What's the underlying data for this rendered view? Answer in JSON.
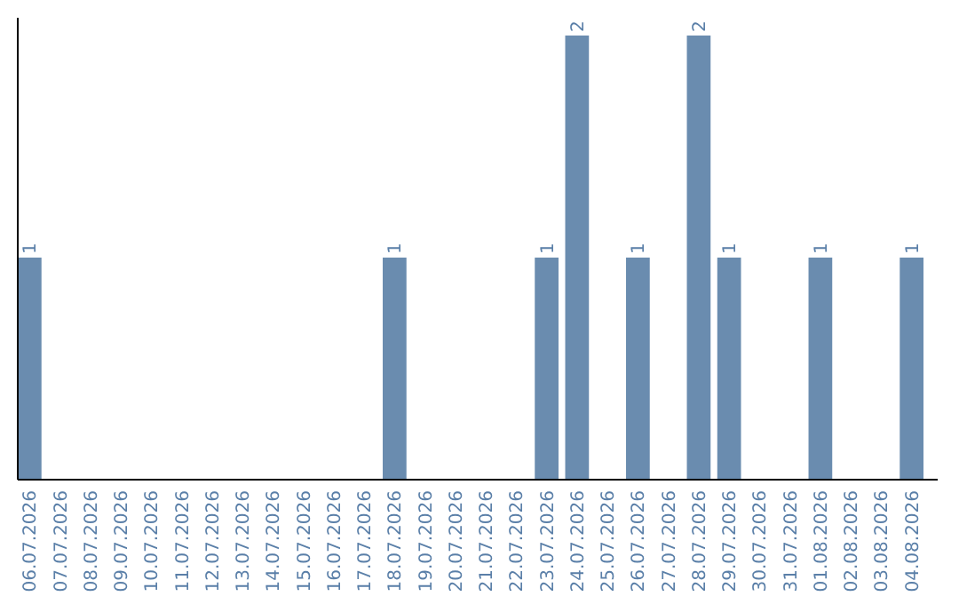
{
  "chart_data": {
    "type": "bar",
    "categories": [
      "06.07.2026",
      "07.07.2026",
      "08.07.2026",
      "09.07.2026",
      "10.07.2026",
      "11.07.2026",
      "12.07.2026",
      "13.07.2026",
      "14.07.2026",
      "15.07.2026",
      "16.07.2026",
      "17.07.2026",
      "18.07.2026",
      "19.07.2026",
      "20.07.2026",
      "21.07.2026",
      "22.07.2026",
      "23.07.2026",
      "24.07.2026",
      "25.07.2026",
      "26.07.2026",
      "27.07.2026",
      "28.07.2026",
      "29.07.2026",
      "30.07.2026",
      "31.07.2026",
      "01.08.2026",
      "02.08.2026",
      "03.08.2026",
      "04.08.2026"
    ],
    "values": [
      1,
      null,
      null,
      null,
      null,
      null,
      null,
      null,
      null,
      null,
      null,
      null,
      1,
      null,
      null,
      null,
      null,
      1,
      2,
      null,
      1,
      null,
      2,
      1,
      null,
      null,
      1,
      null,
      null,
      1
    ],
    "color": "#6a8caf",
    "data_labels": true
  }
}
